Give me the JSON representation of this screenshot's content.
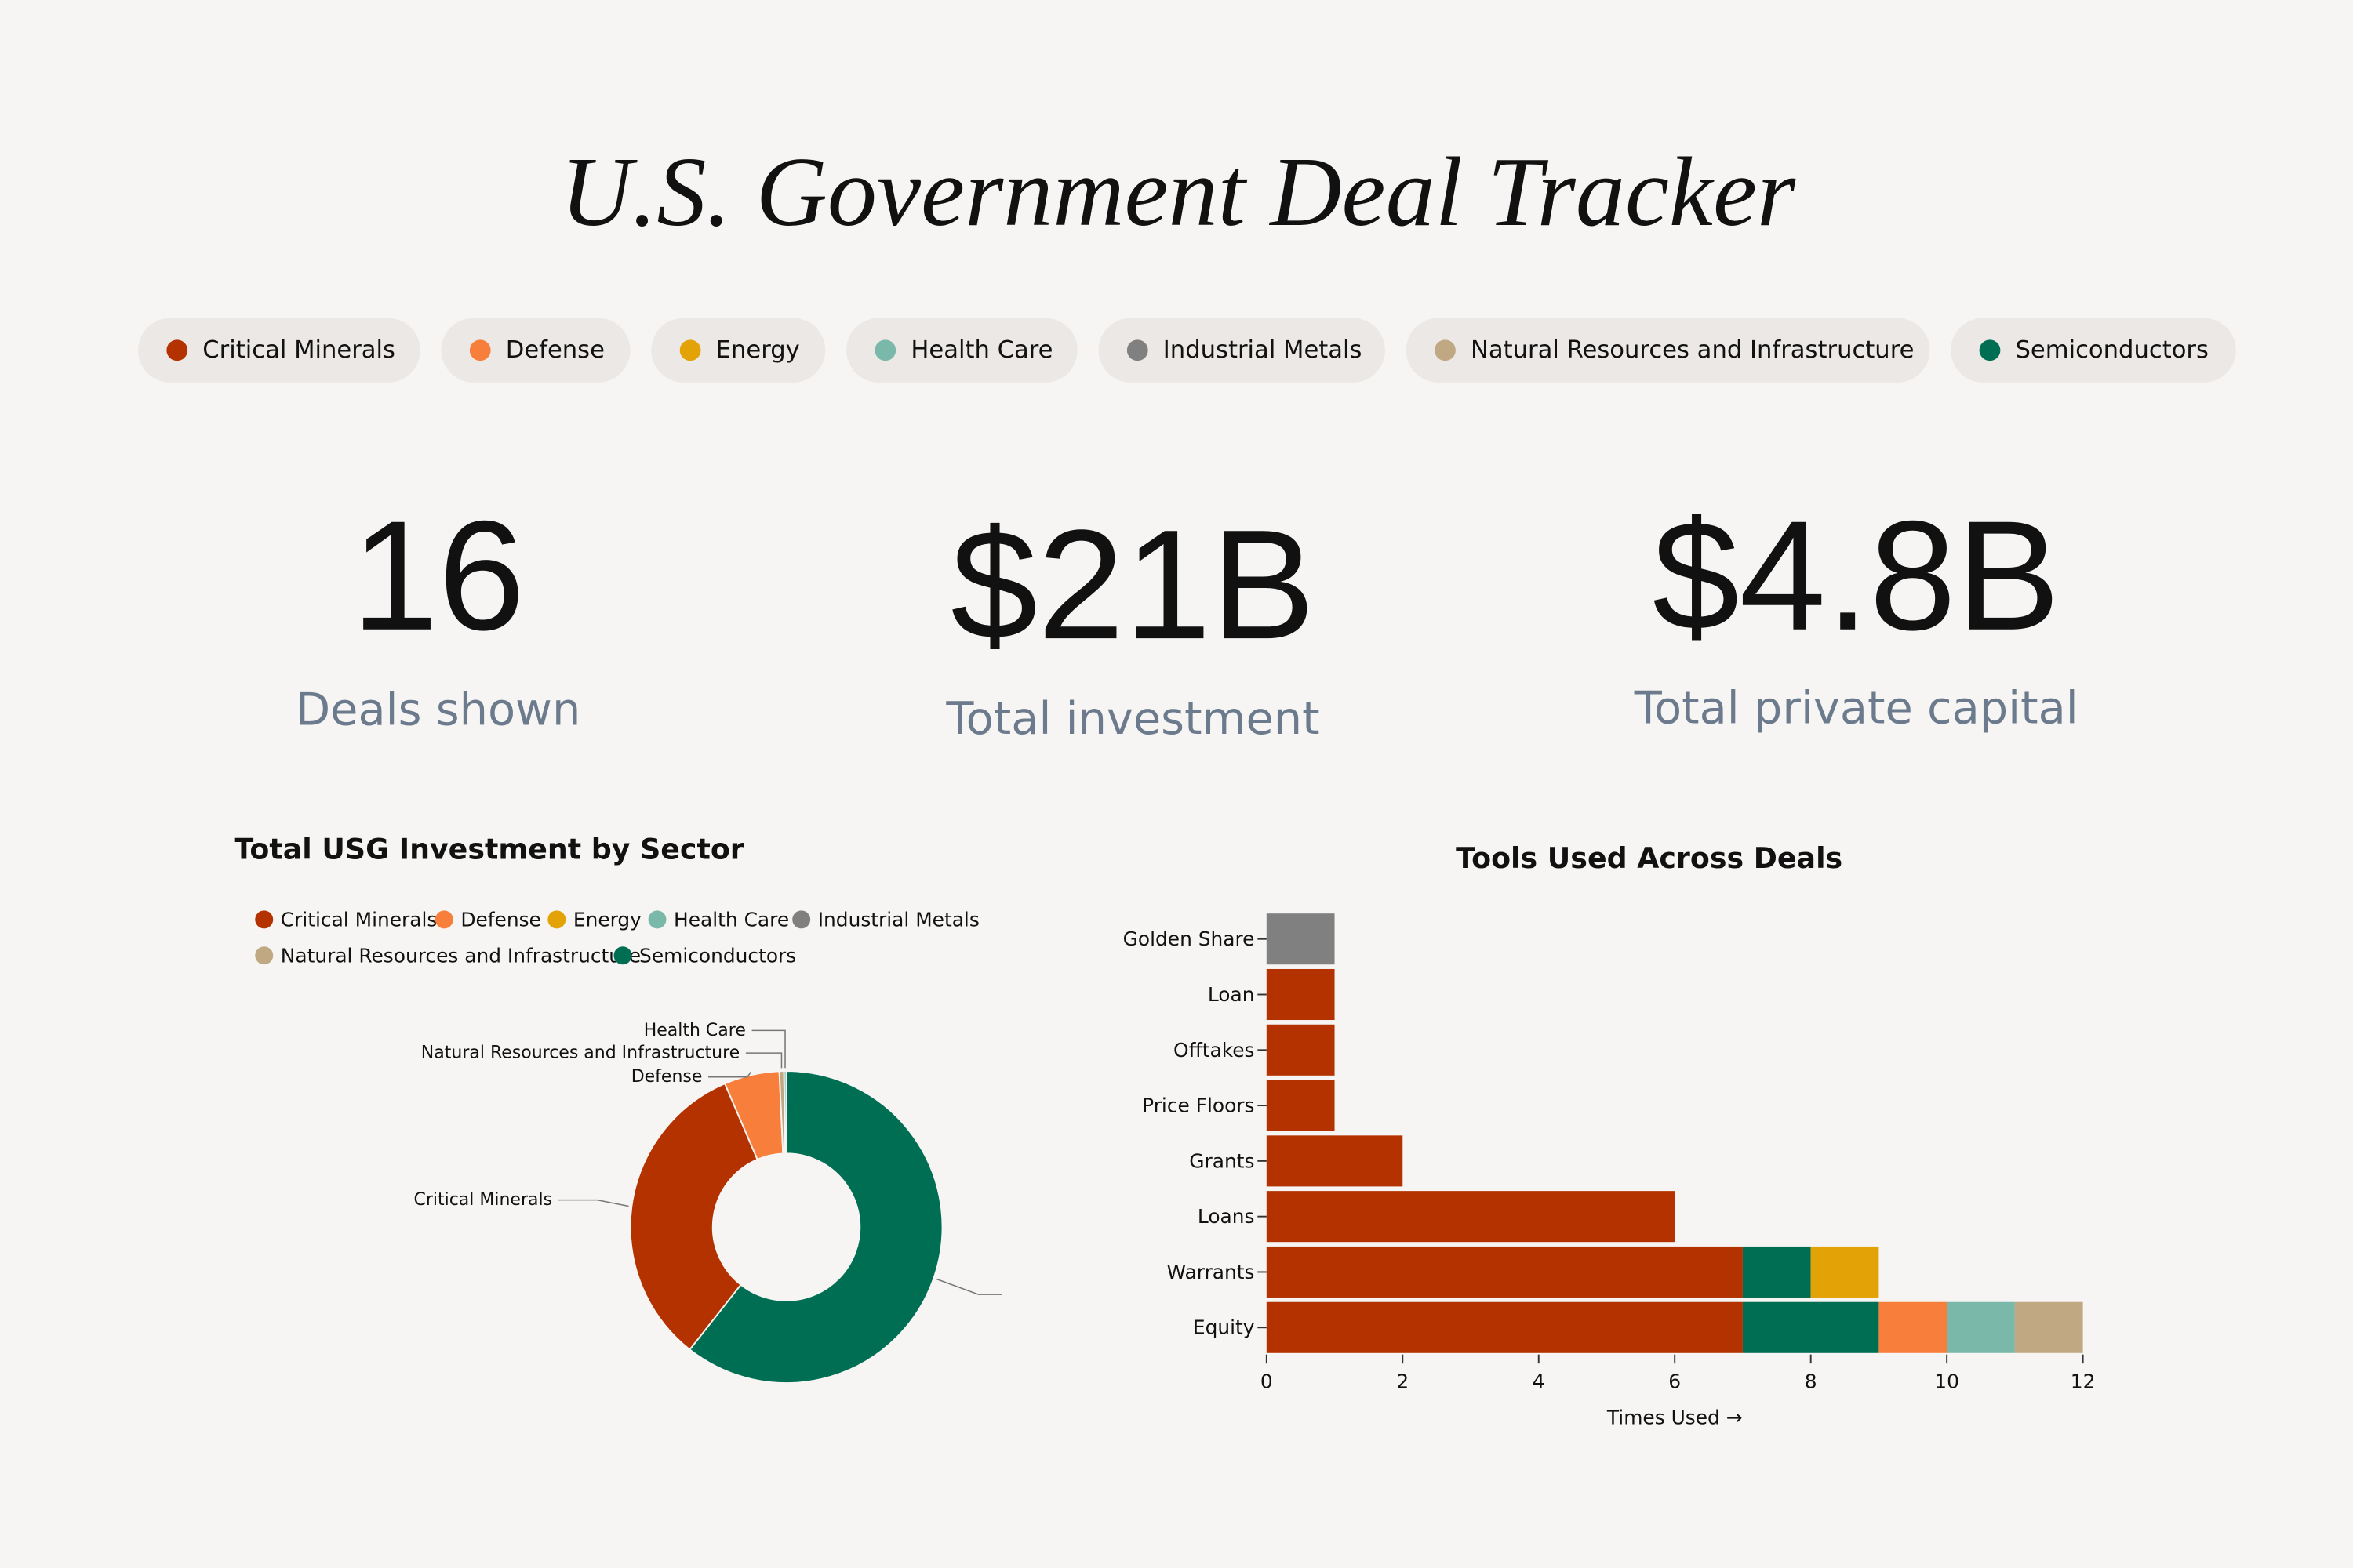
{
  "header": {
    "title": "U.S. Government Deal Tracker"
  },
  "filters": [
    {
      "label": "Critical Minerals",
      "color": "#b33200"
    },
    {
      "label": "Defense",
      "color": "#f77f3b"
    },
    {
      "label": "Energy",
      "color": "#e3a205"
    },
    {
      "label": "Health Care",
      "color": "#7ab8aa"
    },
    {
      "label": "Industrial Metals",
      "color": "#808080"
    },
    {
      "label": "Natural Resources and Infrastructure",
      "color": "#bfa882"
    },
    {
      "label": "Semiconductors",
      "color": "#006e52"
    }
  ],
  "kpis": [
    {
      "value": "16",
      "label": "Deals shown"
    },
    {
      "value": "$21B",
      "label": "Total investment"
    },
    {
      "value": "$4.8B",
      "label": "Total private capital"
    }
  ],
  "chart_data": [
    {
      "type": "donut",
      "title": "Total USG Investment by Sector",
      "legend": [
        {
          "name": "Critical Minerals",
          "color": "#b33200"
        },
        {
          "name": "Defense",
          "color": "#f77f3b"
        },
        {
          "name": "Energy",
          "color": "#e3a205"
        },
        {
          "name": "Health Care",
          "color": "#7ab8aa"
        },
        {
          "name": "Industrial Metals",
          "color": "#808080"
        },
        {
          "name": "Natural Resources and Infrastructure",
          "color": "#bfa882"
        },
        {
          "name": "Semiconductors",
          "color": "#006e52"
        }
      ],
      "categories": [
        "Semiconductors",
        "Critical Minerals",
        "Defense",
        "Natural Resources and Infrastructure",
        "Health Care"
      ],
      "colors": [
        "#006e52",
        "#b33200",
        "#f77f3b",
        "#bfa882",
        "#7ab8aa"
      ],
      "values": [
        12.7,
        6.9,
        1.2,
        0.1,
        0.05
      ]
    },
    {
      "type": "stacked-barh",
      "title": "Tools Used Across Deals",
      "x_label": "Times Used →",
      "categories": [
        "Golden Share",
        "Loan",
        "Offtakes",
        "Price Floors",
        "Grants",
        "Loans",
        "Warrants",
        "Equity"
      ],
      "series": [
        {
          "name": "Critical Minerals",
          "color": "#b33200",
          "values": [
            0,
            1,
            1,
            1,
            2,
            6,
            7,
            7
          ]
        },
        {
          "name": "Semiconductors",
          "color": "#006e52",
          "values": [
            0,
            0,
            0,
            0,
            0,
            0,
            1,
            2
          ]
        },
        {
          "name": "Energy",
          "color": "#e3a205",
          "values": [
            0,
            0,
            0,
            0,
            0,
            0,
            1,
            0
          ]
        },
        {
          "name": "Defense",
          "color": "#f77f3b",
          "values": [
            0,
            0,
            0,
            0,
            0,
            0,
            0,
            1
          ]
        },
        {
          "name": "Health Care",
          "color": "#7ab8aa",
          "values": [
            0,
            0,
            0,
            0,
            0,
            0,
            0,
            1
          ]
        },
        {
          "name": "Natural Resources and Infrastructure",
          "color": "#bfa882",
          "values": [
            0,
            0,
            0,
            0,
            0,
            0,
            0,
            1
          ]
        },
        {
          "name": "Industrial Metals",
          "color": "#808080",
          "values": [
            1,
            0,
            0,
            0,
            0,
            0,
            0,
            0
          ]
        }
      ],
      "xlim": [
        0,
        12
      ],
      "xticks": [
        0,
        2,
        4,
        6,
        8,
        10,
        12
      ]
    }
  ]
}
